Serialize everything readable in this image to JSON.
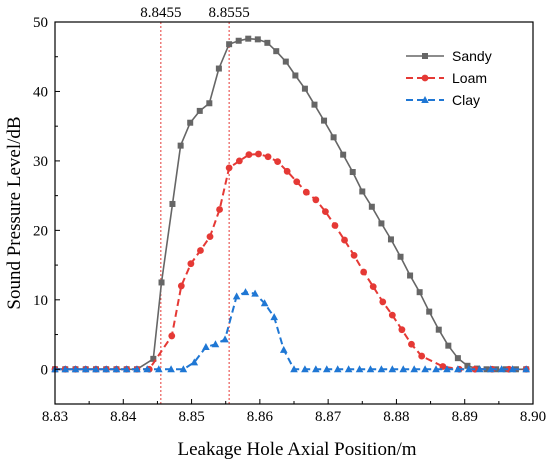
{
  "chart_data": {
    "type": "line",
    "title": "",
    "xlabel": "Leakage Hole Axial Position/m",
    "ylabel": "Sound Pressure Level/dB",
    "xlim": [
      8.83,
      8.9
    ],
    "ylim": [
      -5,
      50
    ],
    "x_ticks": [
      "8.83",
      "8.84",
      "8.85",
      "8.86",
      "8.87",
      "8.88",
      "8.89",
      "8.90"
    ],
    "y_ticks": [
      "0",
      "10",
      "20",
      "30",
      "40",
      "50"
    ],
    "x_tick_values": [
      8.83,
      8.84,
      8.85,
      8.86,
      8.87,
      8.88,
      8.89,
      8.9
    ],
    "y_tick_values": [
      0,
      10,
      20,
      30,
      40,
      50
    ],
    "grid": false,
    "legend_position": "top-right",
    "vertical_lines": [
      {
        "x": 8.8455,
        "label": "8.8455",
        "color": "#e53935"
      },
      {
        "x": 8.8555,
        "label": "8.8555",
        "color": "#e53935"
      }
    ],
    "series": [
      {
        "name": "Sandy",
        "color": "#666666",
        "line_style": "solid",
        "marker": "square",
        "points": [
          [
            8.83,
            0
          ],
          [
            8.8315,
            0
          ],
          [
            8.833,
            0
          ],
          [
            8.8345,
            0
          ],
          [
            8.836,
            0
          ],
          [
            8.8375,
            0
          ],
          [
            8.839,
            0
          ],
          [
            8.8405,
            0
          ],
          [
            8.842,
            0
          ],
          [
            8.8444,
            1.5
          ],
          [
            8.8456,
            12.5
          ],
          [
            8.8472,
            23.8
          ],
          [
            8.8484,
            32.2
          ],
          [
            8.8498,
            35.5
          ],
          [
            8.8512,
            37.2
          ],
          [
            8.8526,
            38.3
          ],
          [
            8.854,
            43.3
          ],
          [
            8.8555,
            46.8
          ],
          [
            8.8569,
            47.3
          ],
          [
            8.8583,
            47.6
          ],
          [
            8.8597,
            47.5
          ],
          [
            8.8611,
            47.0
          ],
          [
            8.8624,
            45.8
          ],
          [
            8.8638,
            44.3
          ],
          [
            8.8652,
            42.3
          ],
          [
            8.8666,
            40.4
          ],
          [
            8.868,
            38.1
          ],
          [
            8.8694,
            35.8
          ],
          [
            8.8708,
            33.4
          ],
          [
            8.8722,
            30.9
          ],
          [
            8.8736,
            28.4
          ],
          [
            8.875,
            25.6
          ],
          [
            8.8764,
            23.4
          ],
          [
            8.8778,
            21.0
          ],
          [
            8.8792,
            18.7
          ],
          [
            8.8806,
            16.2
          ],
          [
            8.882,
            13.5
          ],
          [
            8.8834,
            11.1
          ],
          [
            8.8848,
            8.3
          ],
          [
            8.8862,
            5.7
          ],
          [
            8.8876,
            3.4
          ],
          [
            8.889,
            1.6
          ],
          [
            8.8904,
            0.5
          ],
          [
            8.8918,
            0.1
          ],
          [
            8.8932,
            0
          ],
          [
            8.8946,
            0
          ],
          [
            8.896,
            0
          ],
          [
            8.8975,
            0
          ],
          [
            8.899,
            0
          ]
        ]
      },
      {
        "name": "Loam",
        "color": "#e53935",
        "line_style": "dashed",
        "marker": "circle",
        "points": [
          [
            8.83,
            0
          ],
          [
            8.8315,
            0
          ],
          [
            8.833,
            0
          ],
          [
            8.8345,
            0
          ],
          [
            8.836,
            0
          ],
          [
            8.8375,
            0
          ],
          [
            8.839,
            0
          ],
          [
            8.8405,
            0
          ],
          [
            8.842,
            0
          ],
          [
            8.8438,
            0
          ],
          [
            8.8471,
            4.8
          ],
          [
            8.8485,
            12.0
          ],
          [
            8.8499,
            15.2
          ],
          [
            8.8513,
            17.1
          ],
          [
            8.8527,
            19.1
          ],
          [
            8.8541,
            23.0
          ],
          [
            8.8555,
            29.0
          ],
          [
            8.857,
            30.0
          ],
          [
            8.8584,
            30.9
          ],
          [
            8.8598,
            31.0
          ],
          [
            8.8612,
            30.6
          ],
          [
            8.8626,
            29.9
          ],
          [
            8.864,
            28.5
          ],
          [
            8.8654,
            27.0
          ],
          [
            8.8668,
            25.5
          ],
          [
            8.8682,
            24.4
          ],
          [
            8.8696,
            22.7
          ],
          [
            8.871,
            20.7
          ],
          [
            8.8724,
            18.6
          ],
          [
            8.8738,
            16.4
          ],
          [
            8.8752,
            14.0
          ],
          [
            8.8766,
            11.9
          ],
          [
            8.878,
            9.7
          ],
          [
            8.8794,
            7.8
          ],
          [
            8.8808,
            5.7
          ],
          [
            8.8822,
            3.6
          ],
          [
            8.8837,
            1.9
          ],
          [
            8.8868,
            0.4
          ],
          [
            8.8892,
            0
          ],
          [
            8.8915,
            0
          ],
          [
            8.894,
            0
          ],
          [
            8.8965,
            0
          ],
          [
            8.899,
            0
          ]
        ]
      },
      {
        "name": "Clay",
        "color": "#1f77d4",
        "line_style": "dashed",
        "marker": "triangle",
        "points": [
          [
            8.83,
            0
          ],
          [
            8.8315,
            0
          ],
          [
            8.833,
            0
          ],
          [
            8.8345,
            0
          ],
          [
            8.836,
            0
          ],
          [
            8.8375,
            0
          ],
          [
            8.839,
            0
          ],
          [
            8.8405,
            0
          ],
          [
            8.842,
            0
          ],
          [
            8.8435,
            0
          ],
          [
            8.8452,
            0
          ],
          [
            8.847,
            0
          ],
          [
            8.8488,
            0
          ],
          [
            8.8504,
            1.0
          ],
          [
            8.8521,
            3.2
          ],
          [
            8.8535,
            3.6
          ],
          [
            8.8549,
            4.3
          ],
          [
            8.8566,
            10.5
          ],
          [
            8.8579,
            11.1
          ],
          [
            8.8593,
            10.9
          ],
          [
            8.8607,
            9.5
          ],
          [
            8.8621,
            7.5
          ],
          [
            8.8635,
            2.8
          ],
          [
            8.865,
            0
          ],
          [
            8.8666,
            0
          ],
          [
            8.8682,
            0
          ],
          [
            8.8698,
            0
          ],
          [
            8.8714,
            0
          ],
          [
            8.873,
            0
          ],
          [
            8.8746,
            0
          ],
          [
            8.8762,
            0
          ],
          [
            8.8778,
            0
          ],
          [
            8.8794,
            0
          ],
          [
            8.881,
            0
          ],
          [
            8.8826,
            0
          ],
          [
            8.8842,
            0
          ],
          [
            8.8858,
            0
          ],
          [
            8.8874,
            0
          ],
          [
            8.889,
            0
          ],
          [
            8.8906,
            0
          ],
          [
            8.8922,
            0
          ],
          [
            8.8938,
            0
          ],
          [
            8.8954,
            0
          ],
          [
            8.897,
            0
          ],
          [
            8.899,
            0
          ]
        ]
      }
    ]
  }
}
